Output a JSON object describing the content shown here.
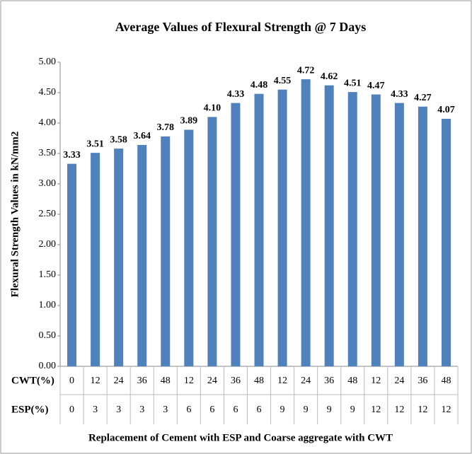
{
  "chart_data": {
    "type": "bar",
    "title": "Average Values of Flexural Strength @ 7 Days",
    "x_label": "Replacement of Cement with ESP and Coarse aggregate with CWT",
    "y_label": "Flexural Strength Values in kN/mm2",
    "category_levels": [
      {
        "name": "CWT(%)",
        "labels": [
          "0",
          "12",
          "24",
          "36",
          "48",
          "12",
          "24",
          "36",
          "48",
          "12",
          "24",
          "36",
          "48",
          "12",
          "24",
          "36",
          "48"
        ]
      },
      {
        "name": "ESP(%)",
        "labels": [
          "0",
          "3",
          "3",
          "3",
          "3",
          "6",
          "6",
          "6",
          "6",
          "9",
          "9",
          "9",
          "9",
          "12",
          "12",
          "12",
          "12"
        ]
      }
    ],
    "values": [
      3.33,
      3.51,
      3.58,
      3.64,
      3.78,
      3.89,
      4.1,
      4.33,
      4.48,
      4.55,
      4.72,
      4.62,
      4.51,
      4.47,
      4.33,
      4.27,
      4.07
    ],
    "value_labels": [
      "3.33",
      "3.51",
      "3.58",
      "3.64",
      "3.78",
      "3.89",
      "4.10",
      "4.33",
      "4.48",
      "4.55",
      "4.72",
      "4.62",
      "4.51",
      "4.47",
      "4.33",
      "4.27",
      "4.07"
    ],
    "color": "#4f81bd",
    "ylim": [
      0,
      5
    ],
    "yticks": [
      {
        "value": 0,
        "label": "0.00"
      },
      {
        "value": 0.5,
        "label": "0.50"
      },
      {
        "value": 1,
        "label": "1.00"
      },
      {
        "value": 1.5,
        "label": "1.50"
      },
      {
        "value": 2,
        "label": "2.00"
      },
      {
        "value": 2.5,
        "label": "2.50"
      },
      {
        "value": 3,
        "label": "3.00"
      },
      {
        "value": 3.5,
        "label": "3.50"
      },
      {
        "value": 4,
        "label": "4.00"
      },
      {
        "value": 4.5,
        "label": "4.50"
      },
      {
        "value": 5,
        "label": "5.00"
      }
    ],
    "grid": false
  }
}
